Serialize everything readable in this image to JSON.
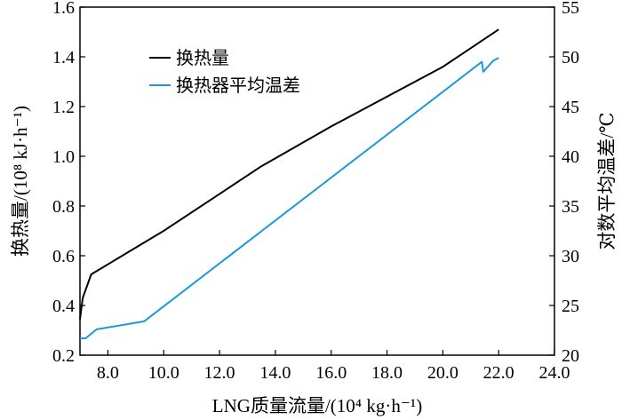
{
  "chart_data": {
    "type": "line",
    "x": {
      "label": "LNG质量流量/(10⁴ kg·h⁻¹)",
      "lim": [
        7.0,
        24.0
      ],
      "ticks": [
        8.0,
        10.0,
        12.0,
        14.0,
        16.0,
        18.0,
        20.0,
        22.0,
        24.0
      ],
      "tick_labels": [
        "8.0",
        "10.0",
        "12.0",
        "14.0",
        "16.0",
        "18.0",
        "20.0",
        "22.0",
        "24.0"
      ]
    },
    "y_left": {
      "label": "换热量/(10⁸ kJ·h⁻¹)",
      "lim": [
        0.2,
        1.6
      ],
      "ticks": [
        0.2,
        0.4,
        0.6,
        0.8,
        1.0,
        1.2,
        1.4,
        1.6
      ],
      "tick_labels": [
        "0.2",
        "0.4",
        "0.6",
        "0.8",
        "1.0",
        "1.2",
        "1.4",
        "1.6"
      ]
    },
    "y_right": {
      "label": "对数平均温差/℃",
      "lim": [
        20,
        55
      ],
      "ticks": [
        20,
        25,
        30,
        35,
        40,
        45,
        50,
        55
      ],
      "tick_labels": [
        "20",
        "25",
        "30",
        "35",
        "40",
        "45",
        "50",
        "55"
      ]
    },
    "series": [
      {
        "name": "换热量",
        "axis": "left",
        "color": "#000000",
        "points": [
          [
            7.0,
            0.345
          ],
          [
            7.1,
            0.43
          ],
          [
            7.4,
            0.525
          ],
          [
            10.0,
            0.7
          ],
          [
            13.5,
            0.96
          ],
          [
            16.0,
            1.12
          ],
          [
            20.0,
            1.36
          ],
          [
            22.0,
            1.51
          ]
        ]
      },
      {
        "name": "换热器平均温差",
        "axis": "right",
        "color": "#1a9ad7",
        "points": [
          [
            7.0,
            21.7
          ],
          [
            7.2,
            21.7
          ],
          [
            7.6,
            22.6
          ],
          [
            9.3,
            23.4
          ],
          [
            21.4,
            49.5
          ],
          [
            21.45,
            48.5
          ],
          [
            21.8,
            49.6
          ],
          [
            22.0,
            49.9
          ]
        ]
      }
    ],
    "legend": {
      "position": "top-left"
    },
    "grid": false
  }
}
